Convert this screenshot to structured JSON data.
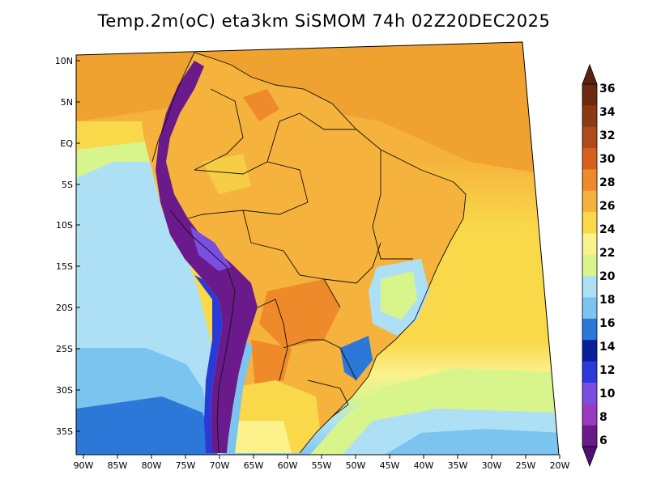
{
  "title": "Temp.2m(oC) eta3km SiSMOM 74h 02Z20DEC2025",
  "map": {
    "variable": "2 m temperature",
    "units": "oC",
    "model": "eta3km SiSMOM",
    "forecast_hour": "74h",
    "valid_time": "02Z20DEC2025",
    "region": "South America"
  },
  "axes": {
    "lat_ticks": [
      "10N",
      "5N",
      "EQ",
      "5S",
      "10S",
      "15S",
      "20S",
      "25S",
      "30S",
      "35S"
    ],
    "lon_ticks": [
      "90W",
      "85W",
      "80W",
      "75W",
      "70W",
      "65W",
      "60W",
      "55W",
      "50W",
      "45W",
      "40W",
      "35W",
      "30W",
      "25W",
      "20W"
    ]
  },
  "colorbar": {
    "levels": [
      "36",
      "34",
      "32",
      "30",
      "28",
      "26",
      "24",
      "22",
      "20",
      "18",
      "16",
      "14",
      "12",
      "10",
      "8",
      "6"
    ],
    "colors": [
      "#6b2a10",
      "#8c3a14",
      "#b04a1a",
      "#d8601e",
      "#ee8a2a",
      "#f5b23c",
      "#f9d84a",
      "#fbf28c",
      "#d8f58c",
      "#aee0f5",
      "#7cc4f0",
      "#2c78d8",
      "#0a1e9a",
      "#2a3ad8",
      "#7a4ee0",
      "#9a3ac0",
      "#6a1a8a"
    ],
    "top_arrow_color": "#5a2210",
    "bottom_arrow_color": "#50106e"
  }
}
